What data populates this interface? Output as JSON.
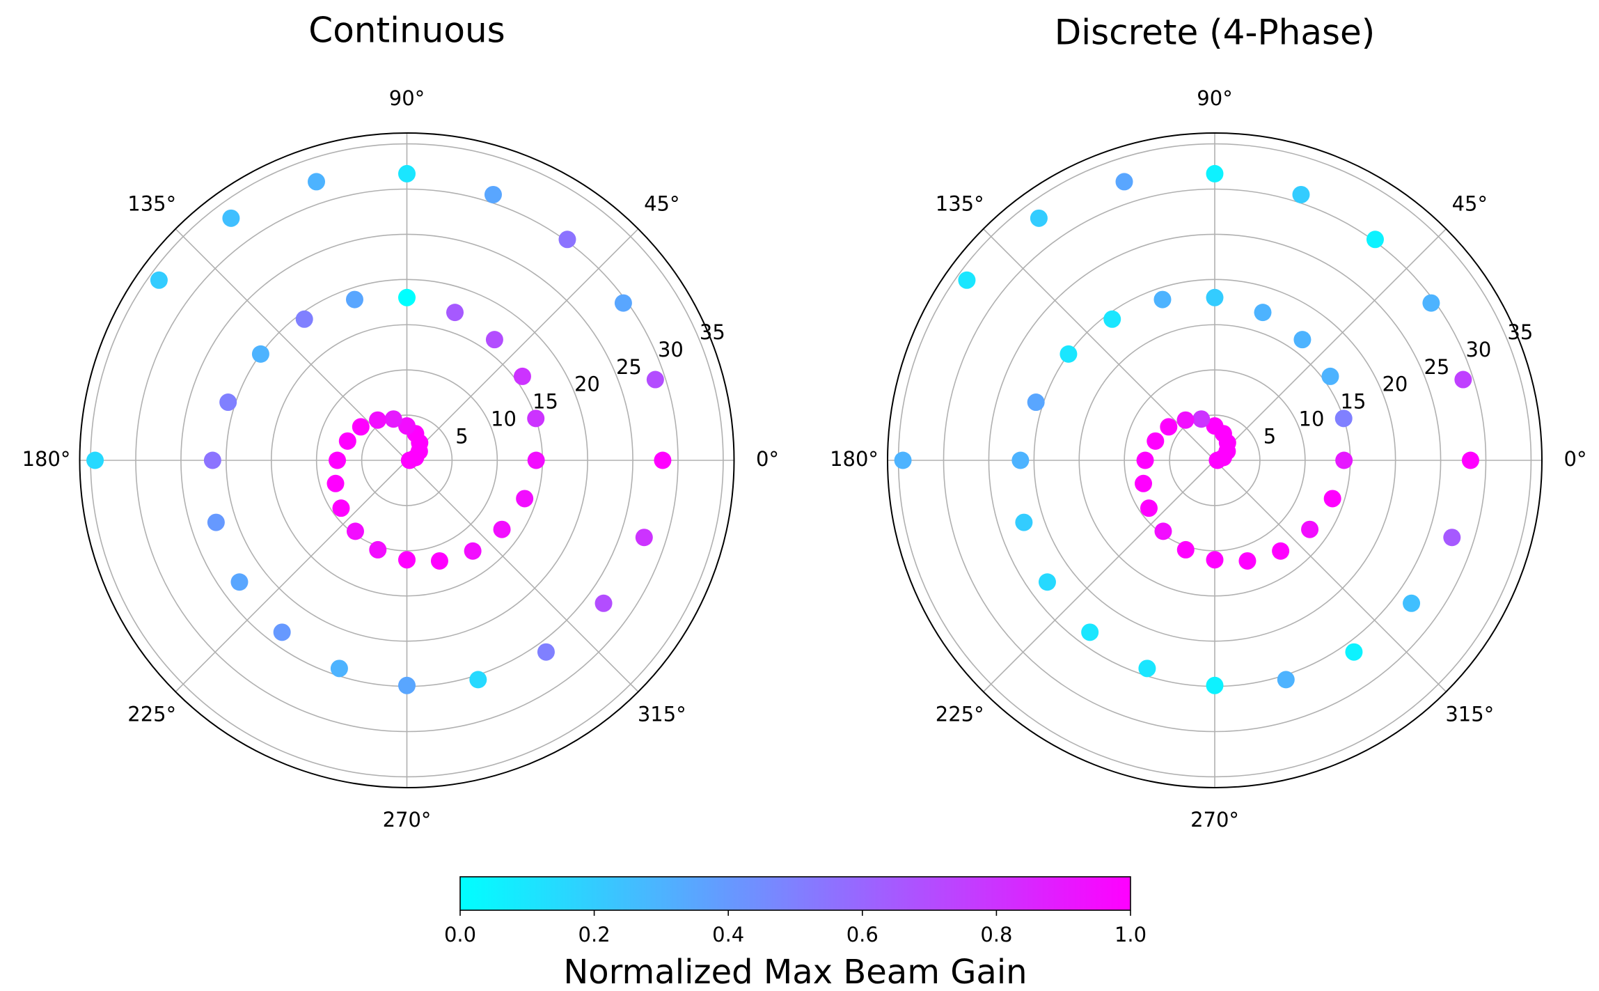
{
  "chart_data": [
    {
      "type": "polar-scatter",
      "title": "Continuous",
      "theta": [
        0,
        18,
        36,
        54,
        72,
        90,
        108,
        126,
        144,
        162,
        180,
        198,
        216,
        234,
        252,
        270,
        288,
        306,
        324,
        342,
        0,
        18,
        36,
        54,
        72,
        90,
        108,
        126,
        144,
        162,
        180,
        198,
        216,
        234,
        252,
        270,
        288,
        306,
        324,
        342,
        0,
        18,
        36,
        54,
        72,
        90,
        108,
        126,
        144,
        180
      ],
      "r": [
        0.3,
        1.0,
        1.7,
        2.4,
        3.1,
        3.8,
        4.8,
        5.5,
        6.3,
        6.9,
        7.7,
        8.3,
        9.0,
        9.7,
        10.4,
        11.0,
        11.7,
        12.4,
        13.0,
        13.7,
        14.3,
        15.0,
        15.8,
        16.5,
        17.2,
        18.0,
        18.7,
        19.3,
        20.0,
        20.8,
        21.5,
        22.2,
        22.9,
        23.5,
        24.2,
        24.9,
        25.5,
        26.2,
        26.9,
        27.6,
        28.3,
        28.9,
        29.6,
        30.2,
        30.9,
        31.7,
        32.4,
        33.1,
        33.9,
        34.5
      ],
      "c": [
        1,
        1,
        1,
        1,
        1,
        0.95,
        0.9,
        0.95,
        1,
        1,
        1,
        1,
        1,
        0.95,
        0.95,
        1,
        1,
        0.95,
        0.95,
        0.95,
        0.95,
        0.8,
        0.8,
        0.7,
        0.65,
        0.0,
        0.35,
        0.5,
        0.3,
        0.5,
        0.55,
        0.4,
        0.35,
        0.4,
        0.3,
        0.35,
        0.15,
        0.5,
        0.7,
        0.8,
        1.0,
        0.7,
        0.35,
        0.55,
        0.35,
        0.1,
        0.3,
        0.25,
        0.2,
        0.15
      ],
      "rlim": [
        0,
        36.2
      ],
      "rticks": [
        5,
        10,
        15,
        20,
        25,
        30,
        35
      ],
      "thetaticks": [
        {
          "value": 0,
          "label": "0°"
        },
        {
          "value": 45,
          "label": "45°"
        },
        {
          "value": 90,
          "label": "90°"
        },
        {
          "value": 135,
          "label": "135°"
        },
        {
          "value": 180,
          "label": "180°"
        },
        {
          "value": 225,
          "label": "225°"
        },
        {
          "value": 270,
          "label": "270°"
        },
        {
          "value": 315,
          "label": "315°"
        }
      ],
      "grid": true
    },
    {
      "type": "polar-scatter",
      "title": "Discrete (4-Phase)",
      "theta": [
        0,
        18,
        36,
        54,
        72,
        90,
        108,
        126,
        144,
        162,
        180,
        198,
        216,
        234,
        252,
        270,
        288,
        306,
        324,
        342,
        0,
        18,
        36,
        54,
        72,
        90,
        108,
        126,
        144,
        162,
        180,
        198,
        216,
        234,
        252,
        270,
        288,
        306,
        324,
        342,
        0,
        18,
        36,
        54,
        72,
        90,
        108,
        126,
        144,
        180
      ],
      "r": [
        0.3,
        1.0,
        1.7,
        2.4,
        3.1,
        3.8,
        4.8,
        5.5,
        6.3,
        6.9,
        7.7,
        8.3,
        9.0,
        9.7,
        10.4,
        11.0,
        11.7,
        12.4,
        13.0,
        13.7,
        14.3,
        15.0,
        15.8,
        16.5,
        17.2,
        18.0,
        18.7,
        19.3,
        20.0,
        20.8,
        21.5,
        22.2,
        22.9,
        23.5,
        24.2,
        24.9,
        25.5,
        26.2,
        26.9,
        27.6,
        28.3,
        28.9,
        29.6,
        30.2,
        30.9,
        31.7,
        32.4,
        33.1,
        33.9,
        34.5
      ],
      "c": [
        1,
        1,
        1,
        1,
        1,
        1,
        0.8,
        0.95,
        1,
        1,
        1,
        1,
        1,
        0.95,
        1,
        1,
        1,
        1,
        0.95,
        1,
        0.9,
        0.5,
        0.3,
        0.3,
        0.3,
        0.2,
        0.3,
        0.1,
        0.1,
        0.35,
        0.3,
        0.2,
        0.15,
        0.1,
        0.1,
        0.05,
        0.3,
        0.05,
        0.25,
        0.65,
        1.0,
        0.75,
        0.3,
        0.05,
        0.2,
        0.05,
        0.35,
        0.2,
        0.1,
        0.3
      ],
      "rlim": [
        0,
        36.2
      ],
      "rticks": [
        5,
        10,
        15,
        20,
        25,
        30,
        35
      ],
      "thetaticks": [
        {
          "value": 0,
          "label": "0°"
        },
        {
          "value": 45,
          "label": "45°"
        },
        {
          "value": 90,
          "label": "90°"
        },
        {
          "value": 135,
          "label": "135°"
        },
        {
          "value": 180,
          "label": "180°"
        },
        {
          "value": 225,
          "label": "225°"
        },
        {
          "value": 270,
          "label": "270°"
        },
        {
          "value": 315,
          "label": "315°"
        }
      ],
      "grid": true
    }
  ],
  "colorbar": {
    "label": "Normalized Max Beam Gain",
    "colormap": "cool",
    "clim": [
      0,
      1
    ],
    "ticks": [
      {
        "value": 0,
        "label": "0.0"
      },
      0.2,
      0.4,
      0.6,
      0.8,
      {
        "value": 1,
        "label": "1.0"
      }
    ]
  }
}
